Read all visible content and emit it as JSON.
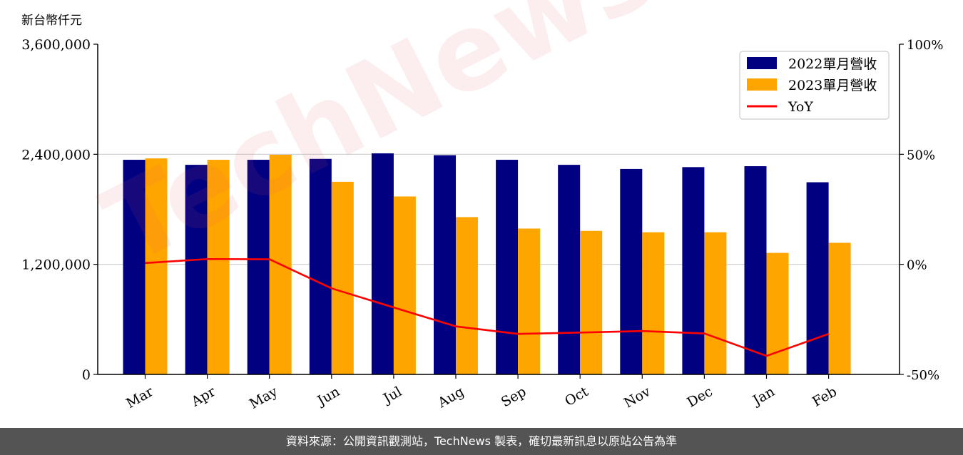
{
  "unit_label": "新台幣仟元",
  "footer_text": "資料來源：公開資訊觀測站，TechNews 製表，確切最新訊息以原站公告為準",
  "watermark_text": "TechNews",
  "colors": {
    "series_2022": "#000080",
    "series_2023": "#FFA500",
    "yoy": "#FF0000",
    "grid": "#cccccc",
    "footer_bg": "#545454"
  },
  "chart_data": {
    "type": "bar",
    "categories": [
      "Mar",
      "Apr",
      "May",
      "Jun",
      "Jul",
      "Aug",
      "Sep",
      "Oct",
      "Nov",
      "Dec",
      "Jan",
      "Feb"
    ],
    "series": [
      {
        "name": "2022單月營收",
        "values": [
          2340000,
          2285000,
          2340000,
          2350000,
          2410000,
          2390000,
          2340000,
          2285000,
          2240000,
          2260000,
          2270000,
          2095000
        ]
      },
      {
        "name": "2023單月營收",
        "values": [
          2355000,
          2340000,
          2395000,
          2100000,
          1940000,
          1715000,
          1590000,
          1565000,
          1550000,
          1550000,
          1325000,
          1435000
        ]
      }
    ],
    "line_series": {
      "name": "YoY",
      "axis": "right",
      "values": [
        0.6,
        2.4,
        2.3,
        -10.9,
        -19.6,
        -28.2,
        -31.6,
        -31.0,
        -30.3,
        -31.4,
        -41.6,
        -31.6
      ]
    },
    "ylim_left": [
      0,
      3600000
    ],
    "yticks_left": [
      "0",
      "1,200,000",
      "2,400,000",
      "3,600,000"
    ],
    "ylim_right": [
      -50,
      100
    ],
    "yticks_right": [
      "-50%",
      "0%",
      "50%",
      "100%"
    ],
    "grid": true,
    "legend_position": "top-right"
  }
}
